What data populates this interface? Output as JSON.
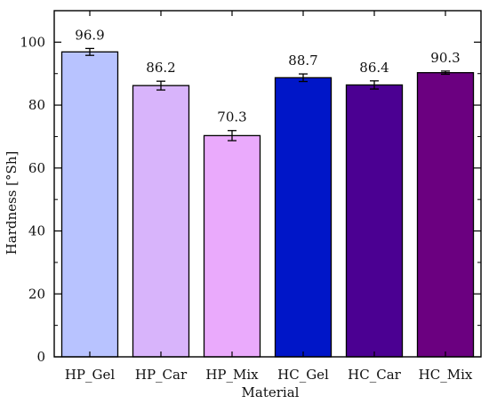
{
  "chart_data": {
    "type": "bar",
    "title": "",
    "xlabel": "Material",
    "ylabel": "Hardness [°Sh]",
    "ylim": [
      0,
      110
    ],
    "yticks": [
      0,
      20,
      40,
      60,
      80,
      100
    ],
    "grid": false,
    "legend": "none",
    "categories": [
      "HP_Gel",
      "HP_Car",
      "HP_Mix",
      "HC_Gel",
      "HC_Car",
      "HC_Mix"
    ],
    "values": [
      96.9,
      86.2,
      70.3,
      88.7,
      86.4,
      90.3
    ],
    "value_labels": [
      "96.9",
      "86.2",
      "70.3",
      "88.7",
      "86.4",
      "90.3"
    ],
    "errors": [
      1.1,
      1.4,
      1.6,
      1.2,
      1.3,
      0.5
    ],
    "colors": [
      "#b8c3ff",
      "#d8b4fb",
      "#eaaafc",
      "#0016c8",
      "#4b0092",
      "#6b0080"
    ]
  }
}
